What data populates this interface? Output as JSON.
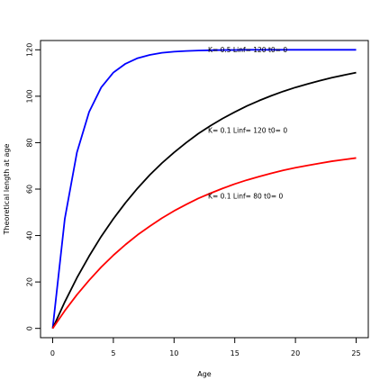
{
  "chart_data": {
    "type": "line",
    "title": "",
    "xlabel": "Age",
    "ylabel": "Theoretical length at age",
    "xlim": [
      -1,
      26
    ],
    "ylim": [
      -4,
      124
    ],
    "grid": false,
    "x_ticks": [
      "0",
      "5",
      "10",
      "15",
      "20",
      "25"
    ],
    "y_ticks": [
      "0",
      "20",
      "40",
      "60",
      "80",
      "100",
      "120"
    ],
    "x": [
      0,
      1,
      2,
      3,
      4,
      5,
      6,
      7,
      8,
      9,
      10,
      11,
      12,
      13,
      14,
      15,
      16,
      17,
      18,
      19,
      20,
      21,
      22,
      23,
      24,
      25
    ],
    "series": [
      {
        "color": "#0000ff",
        "values": [
          0,
          47.2,
          75.8,
          93.2,
          103.8,
          110.2,
          114.0,
          116.4,
          117.8,
          118.7,
          119.2,
          119.5,
          119.7,
          119.8,
          119.9,
          119.9,
          120.0,
          120.0,
          120.0,
          120.0,
          120.0,
          120.0,
          120.0,
          120.0,
          120.0,
          120.0
        ]
      },
      {
        "color": "#000000",
        "values": [
          0,
          11.4,
          21.8,
          31.1,
          39.6,
          47.2,
          54.1,
          60.4,
          66.1,
          71.2,
          75.8,
          80.0,
          83.9,
          87.3,
          90.4,
          93.2,
          95.8,
          98.1,
          100.2,
          102.1,
          103.8,
          105.3,
          106.7,
          108.0,
          109.1,
          110.2
        ]
      },
      {
        "color": "#ff0000",
        "values": [
          0,
          7.6,
          14.5,
          20.7,
          26.4,
          31.5,
          36.1,
          40.3,
          44.0,
          47.5,
          50.6,
          53.4,
          56.0,
          58.2,
          60.3,
          62.2,
          63.9,
          65.4,
          66.8,
          68.1,
          69.2,
          70.2,
          71.1,
          72.0,
          72.7,
          73.4
        ]
      }
    ],
    "annotations": [
      {
        "text": "K= 0.5  Linf= 120  t0= 0",
        "x": 12.8,
        "y": 119.8
      },
      {
        "text": "K= 0.1  Linf= 120  t0= 0",
        "x": 12.8,
        "y": 85.0
      },
      {
        "text": "K= 0.1  Linf= 80  t0= 0",
        "x": 12.8,
        "y": 56.8
      }
    ]
  }
}
